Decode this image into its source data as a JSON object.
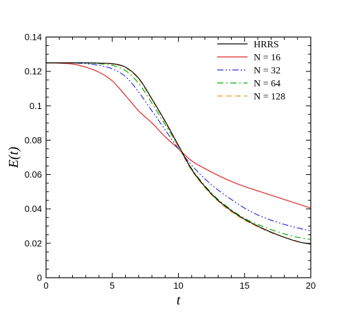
{
  "chart_data": {
    "type": "line",
    "xlabel": "t",
    "ylabel": "E(t)",
    "xlim": [
      0,
      20
    ],
    "ylim": [
      0,
      0.14
    ],
    "xticks": [
      0,
      5,
      10,
      15,
      20
    ],
    "yticks": [
      0,
      0.02,
      0.04,
      0.06,
      0.08,
      0.1,
      0.12,
      0.14
    ],
    "xtick_labels": [
      "0",
      "5",
      "10",
      "15",
      "20"
    ],
    "ytick_labels": [
      "0",
      "0.02",
      "0.04",
      "0.06",
      "0.08",
      "0.1",
      "0.12",
      "0.14"
    ],
    "grid": false,
    "legend_position": "top-right",
    "series": [
      {
        "name": "HRRS",
        "color": "#000000",
        "dash": "solid",
        "x": [
          0,
          1,
          2,
          3,
          4,
          5,
          6,
          7,
          8,
          9,
          10,
          11,
          12,
          13,
          14,
          15,
          16,
          17,
          18,
          19,
          20
        ],
        "y": [
          0.125,
          0.125,
          0.125,
          0.125,
          0.1248,
          0.1245,
          0.1225,
          0.116,
          0.104,
          0.091,
          0.077,
          0.063,
          0.053,
          0.045,
          0.039,
          0.034,
          0.03,
          0.0265,
          0.0235,
          0.021,
          0.0195
        ]
      },
      {
        "name": "N = 16",
        "color": "#e02020",
        "dash": "solid",
        "x": [
          0,
          1,
          2,
          3,
          4,
          5,
          6,
          7,
          8,
          9,
          10,
          11,
          12,
          13,
          14,
          15,
          16,
          17,
          18,
          19,
          20
        ],
        "y": [
          0.125,
          0.1248,
          0.1243,
          0.1225,
          0.1195,
          0.1145,
          0.106,
          0.097,
          0.09,
          0.082,
          0.075,
          0.068,
          0.0635,
          0.0595,
          0.056,
          0.053,
          0.0505,
          0.048,
          0.0455,
          0.043,
          0.0405
        ]
      },
      {
        "name": "N = 32",
        "color": "#2a2adf",
        "dash": "dashdotdot",
        "x": [
          0,
          1,
          2,
          3,
          4,
          5,
          6,
          7,
          8,
          9,
          10,
          11,
          12,
          13,
          14,
          15,
          16,
          17,
          18,
          19,
          20
        ],
        "y": [
          0.125,
          0.125,
          0.1249,
          0.1245,
          0.1235,
          0.1215,
          0.117,
          0.108,
          0.097,
          0.086,
          0.075,
          0.0655,
          0.0575,
          0.051,
          0.0455,
          0.0405,
          0.0365,
          0.0335,
          0.031,
          0.029,
          0.0272
        ]
      },
      {
        "name": "N = 64",
        "color": "#00aa00",
        "dash": "dashdot",
        "x": [
          0,
          1,
          2,
          3,
          4,
          5,
          6,
          7,
          8,
          9,
          10,
          11,
          12,
          13,
          14,
          15,
          16,
          17,
          18,
          19,
          20
        ],
        "y": [
          0.125,
          0.125,
          0.125,
          0.1249,
          0.1245,
          0.1235,
          0.1205,
          0.113,
          0.1015,
          0.089,
          0.0765,
          0.0635,
          0.0535,
          0.0455,
          0.0395,
          0.0345,
          0.031,
          0.028,
          0.0255,
          0.0235,
          0.0223
        ]
      },
      {
        "name": "N = 128",
        "color": "#ff9020",
        "dash": "dashed",
        "x": [
          0,
          1,
          2,
          3,
          4,
          5,
          6,
          7,
          8,
          9,
          10,
          11,
          12,
          13,
          14,
          15,
          16,
          17,
          18,
          19,
          20
        ],
        "y": [
          0.125,
          0.125,
          0.125,
          0.125,
          0.1248,
          0.1243,
          0.1222,
          0.1155,
          0.1035,
          0.0905,
          0.076,
          0.0625,
          0.0525,
          0.0445,
          0.0383,
          0.0335,
          0.0296,
          0.0262,
          0.0235,
          0.0212,
          0.0196
        ]
      }
    ]
  }
}
